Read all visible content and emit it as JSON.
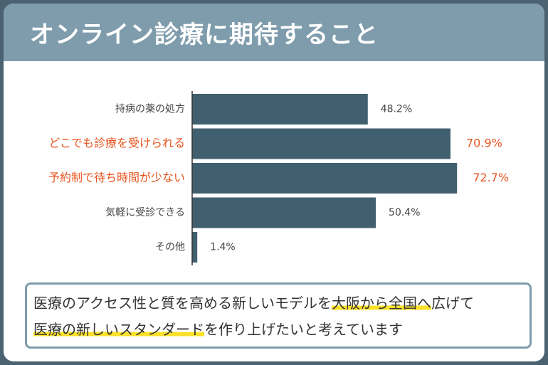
{
  "title": "オンライン診療に期待すること",
  "chart_data": {
    "type": "bar",
    "orientation": "horizontal",
    "categories": [
      "持病の薬の処方",
      "どこでも診療を受けられる",
      "予約制で待ち時間が少ない",
      "気軽に受診できる",
      "その他"
    ],
    "values": [
      48.2,
      70.9,
      72.7,
      50.4,
      1.4
    ],
    "value_labels": [
      "48.2%",
      "70.9%",
      "72.7%",
      "50.4%",
      "1.4%"
    ],
    "highlighted": [
      false,
      true,
      true,
      false,
      false
    ],
    "unit": "%",
    "xlim": [
      0,
      100
    ],
    "bar_color": "#41606f",
    "highlight_color": "#e8541f",
    "grid": false,
    "legend": "none"
  },
  "message": {
    "line1": [
      {
        "text": "医療のアクセス性と質を高める新しいモデルを",
        "underline": false
      },
      {
        "text": "大阪から全国へ",
        "underline": true
      },
      {
        "text": "広げて",
        "underline": false
      }
    ],
    "line2": [
      {
        "text": "医療の新しいスタンダード",
        "underline": true
      },
      {
        "text": "を作り上げたいと考えています",
        "underline": false
      }
    ],
    "underline_color": "#fbe12a"
  },
  "colors": {
    "background": "#4a6272",
    "header": "#7f9cac",
    "text": "#333333"
  }
}
